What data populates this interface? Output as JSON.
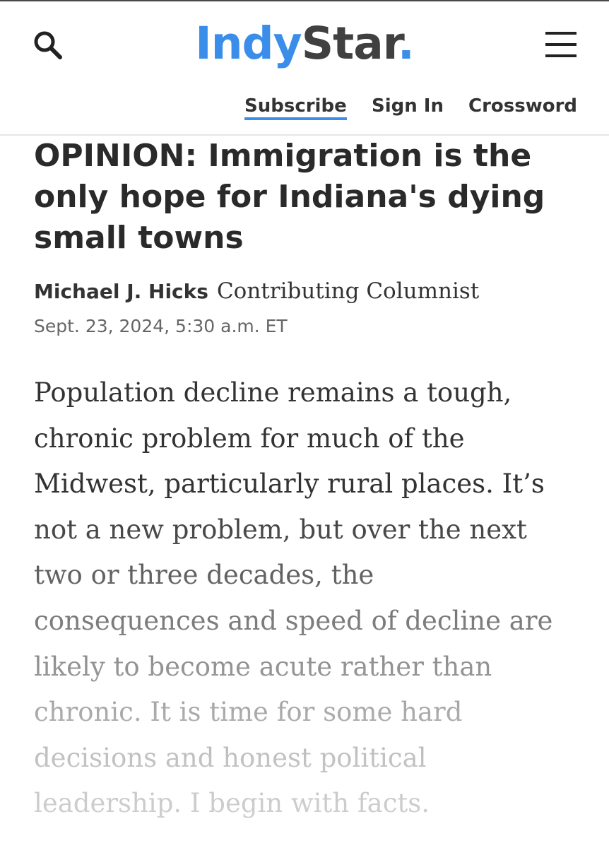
{
  "header": {
    "logo": {
      "part1": "Indy",
      "part2": "Star",
      "dot": "."
    },
    "search_icon": "search-icon",
    "menu_icon": "hamburger-menu-icon",
    "nav": {
      "subscribe": "Subscribe",
      "sign_in": "Sign In",
      "crossword": "Crossword"
    },
    "accent_color": "#3a8ee9"
  },
  "article": {
    "headline": "OPINION: Immigration is the only hope for Indiana's dying small towns",
    "author": "Michael J. Hicks",
    "author_role": "Contributing Columnist",
    "date": "Sept. 23, 2024, 5:30 a.m. ET",
    "body_lines": [
      "Population decline remains a tough,",
      "chronic problem for much of the",
      "Midwest, particularly rural places. It’s",
      "not a new problem, but over the next",
      "two or three decades, the",
      "consequences and speed of decline are",
      "likely to become acute rather than",
      "chronic. It is time for some hard",
      "decisions and honest political",
      "leadership. I begin with facts."
    ]
  }
}
